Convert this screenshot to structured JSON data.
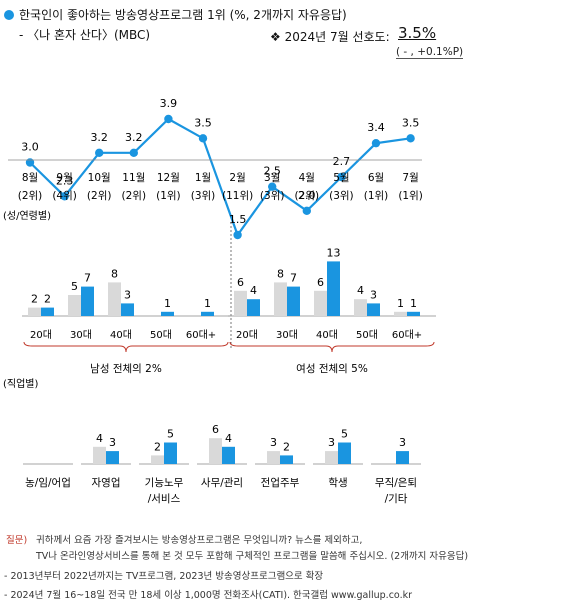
{
  "header": {
    "title": "한국인이 좋아하는 방송영상프로그램 1위",
    "title_suffix": "(%, 2개까지 자유응답)",
    "program": "- 〈나 혼자 산다〉(MBC)",
    "pref_prefix": "❖  2024년 7월 선호도:",
    "pref_value": "3.5%",
    "pref_change": "( - , +0.1%P)"
  },
  "colors": {
    "accent": "#1a95e0",
    "male_gray": "#d9d9d9",
    "bracket": "#c0392b"
  },
  "chart_data": [
    {
      "type": "line",
      "x": [
        "8월",
        "9월",
        "10월",
        "11월",
        "12월",
        "1월",
        "2월",
        "3월",
        "4월",
        "5월",
        "6월",
        "7월"
      ],
      "ranks": [
        "(2위)",
        "(4위)",
        "(2위)",
        "(2위)",
        "(1위)",
        "(3위)",
        "(11위)",
        "(3위)",
        "(2위)",
        "(3위)",
        "(1위)",
        "(1위)"
      ],
      "values": [
        3.0,
        2.3,
        3.2,
        3.2,
        3.9,
        3.5,
        1.5,
        2.5,
        2.0,
        2.7,
        3.4,
        3.5
      ],
      "labels": [
        "3.0",
        "2.3",
        "3.2",
        "3.2",
        "3.9",
        "3.5",
        "1.5",
        "2.5",
        "2.0",
        "2.7",
        "3.4",
        "3.5"
      ]
    },
    {
      "type": "bar",
      "section_label": "(성/연령별)",
      "categories": [
        "20대",
        "30대",
        "40대",
        "50대",
        "60대+"
      ],
      "groups": [
        {
          "name": "남성 전체의 2%",
          "gray": [
            2,
            5,
            8,
            null,
            null
          ],
          "blue": [
            2,
            7,
            3,
            1,
            1
          ],
          "gray_labels": [
            "2",
            "5",
            "8",
            "",
            ""
          ],
          "blue_labels": [
            "2",
            "7",
            "3",
            "1",
            "1"
          ]
        },
        {
          "name": "여성 전체의 5%",
          "gray": [
            6,
            8,
            6,
            4,
            1
          ],
          "blue": [
            4,
            7,
            13,
            3,
            1
          ],
          "gray_labels": [
            "6",
            "8",
            "6",
            "4",
            "1"
          ],
          "blue_labels": [
            "4",
            "7",
            "13",
            "3",
            "1"
          ]
        }
      ]
    },
    {
      "type": "bar",
      "section_label": "(직업별)",
      "categories": [
        "농/임/어업",
        "자영업",
        "기능노무\n/서비스",
        "사무/관리",
        "전업주부",
        "학생",
        "무직/은퇴\n/기타"
      ],
      "gray": [
        null,
        4,
        2,
        6,
        3,
        3,
        null
      ],
      "blue": [
        null,
        3,
        5,
        4,
        2,
        5,
        3
      ],
      "gray_labels": [
        "",
        "4",
        "2",
        "6",
        "3",
        "3",
        ""
      ],
      "blue_labels": [
        "",
        "3",
        "5",
        "4",
        "2",
        "5",
        "3"
      ]
    }
  ],
  "footer": {
    "question_label": "질문)",
    "question_line1": "귀하께서 요즘 가장 즐겨보시는 방송영상프로그램은 무엇입니까? 뉴스를 제외하고,",
    "question_line2": "TV나 온라인영상서비스를 통해 본 것 모두 포함해 구체적인 프로그램을 말씀해 주십시오. (2개까지 자유응답)",
    "note1": "- 2013년부터 2022년까지는 TV프로그램, 2023년 방송영상프로그램으로 확장",
    "note2": "- 2024년 7월 16~18일 전국 만 18세 이상 1,000명 전화조사(CATI). 한국갤럽 www.gallup.co.kr"
  }
}
